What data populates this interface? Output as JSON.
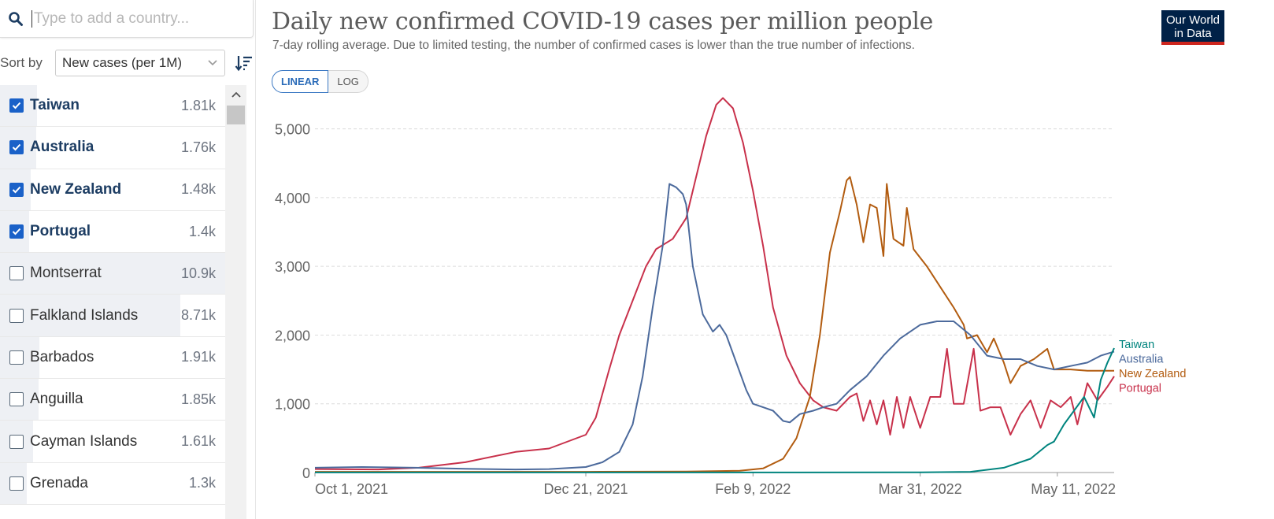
{
  "search": {
    "placeholder": "Type to add a country..."
  },
  "sort": {
    "label": "Sort by",
    "selected": "New cases (per 1M)"
  },
  "countries": [
    {
      "name": "Taiwan",
      "value": "1.81k",
      "checked": true,
      "share": 0.166
    },
    {
      "name": "Australia",
      "value": "1.76k",
      "checked": true,
      "share": 0.161
    },
    {
      "name": "New Zealand",
      "value": "1.48k",
      "checked": true,
      "share": 0.136
    },
    {
      "name": "Portugal",
      "value": "1.4k",
      "checked": true,
      "share": 0.129
    },
    {
      "name": "Montserrat",
      "value": "10.9k",
      "checked": false,
      "share": 1.0
    },
    {
      "name": "Falkland Islands",
      "value": "8.71k",
      "checked": false,
      "share": 0.8
    },
    {
      "name": "Barbados",
      "value": "1.91k",
      "checked": false,
      "share": 0.175
    },
    {
      "name": "Anguilla",
      "value": "1.85k",
      "checked": false,
      "share": 0.17
    },
    {
      "name": "Cayman Islands",
      "value": "1.61k",
      "checked": false,
      "share": 0.148
    },
    {
      "name": "Grenada",
      "value": "1.3k",
      "checked": false,
      "share": 0.119
    }
  ],
  "header": {
    "title": "Daily new confirmed COVID-19 cases per million people",
    "subtitle": "7-day rolling average. Due to limited testing, the number of confirmed cases is lower than the true number of infections.",
    "logo_line1": "Our World",
    "logo_line2": "in Data"
  },
  "scale_toggle": {
    "linear": "LINEAR",
    "log": "LOG",
    "active": "LINEAR"
  },
  "chart_data": {
    "type": "line",
    "x_domain": [
      "2021-10-01",
      "2022-05-28"
    ],
    "y_range": [
      0,
      5500
    ],
    "y_ticks": [
      0,
      1000,
      2000,
      3000,
      4000,
      5000
    ],
    "y_tick_labels": [
      "0",
      "1,000",
      "2,000",
      "3,000",
      "4,000",
      "5,000"
    ],
    "x_ticks": [
      "2021-10-01",
      "2021-12-21",
      "2022-02-09",
      "2022-03-31",
      "2022-05-11"
    ],
    "x_tick_labels": [
      "Oct 1, 2021",
      "Dec 21, 2021",
      "Feb 9, 2022",
      "Mar 31, 2022",
      "May 11, 2022"
    ],
    "grid": true,
    "legend": "right end labels",
    "series": [
      {
        "name": "Taiwan",
        "color": "#00847e",
        "points": [
          [
            "2021-10-01",
            1
          ],
          [
            "2021-12-21",
            1
          ],
          [
            "2022-02-09",
            1
          ],
          [
            "2022-03-31",
            2
          ],
          [
            "2022-04-15",
            10
          ],
          [
            "2022-04-25",
            70
          ],
          [
            "2022-05-03",
            200
          ],
          [
            "2022-05-08",
            400
          ],
          [
            "2022-05-10",
            450
          ],
          [
            "2022-05-13",
            700
          ],
          [
            "2022-05-16",
            900
          ],
          [
            "2022-05-19",
            1100
          ],
          [
            "2022-05-22",
            800
          ],
          [
            "2022-05-24",
            1350
          ],
          [
            "2022-05-26",
            1600
          ],
          [
            "2022-05-28",
            1810
          ]
        ]
      },
      {
        "name": "Australia",
        "color": "#4c6a9c",
        "points": [
          [
            "2021-10-01",
            70
          ],
          [
            "2021-10-15",
            80
          ],
          [
            "2021-10-31",
            70
          ],
          [
            "2021-11-15",
            55
          ],
          [
            "2021-11-30",
            45
          ],
          [
            "2021-12-10",
            50
          ],
          [
            "2021-12-21",
            80
          ],
          [
            "2021-12-26",
            150
          ],
          [
            "2021-12-31",
            300
          ],
          [
            "2022-01-04",
            700
          ],
          [
            "2022-01-07",
            1400
          ],
          [
            "2022-01-10",
            2400
          ],
          [
            "2022-01-13",
            3300
          ],
          [
            "2022-01-15",
            4200
          ],
          [
            "2022-01-17",
            4150
          ],
          [
            "2022-01-19",
            4050
          ],
          [
            "2022-01-20",
            3900
          ],
          [
            "2022-01-22",
            3000
          ],
          [
            "2022-01-25",
            2300
          ],
          [
            "2022-01-28",
            2050
          ],
          [
            "2022-01-30",
            2150
          ],
          [
            "2022-02-01",
            2000
          ],
          [
            "2022-02-04",
            1600
          ],
          [
            "2022-02-07",
            1200
          ],
          [
            "2022-02-09",
            1000
          ],
          [
            "2022-02-12",
            950
          ],
          [
            "2022-02-15",
            900
          ],
          [
            "2022-02-18",
            750
          ],
          [
            "2022-02-20",
            730
          ],
          [
            "2022-02-23",
            850
          ],
          [
            "2022-02-27",
            900
          ],
          [
            "2022-03-02",
            950
          ],
          [
            "2022-03-06",
            1000
          ],
          [
            "2022-03-10",
            1200
          ],
          [
            "2022-03-15",
            1400
          ],
          [
            "2022-03-20",
            1700
          ],
          [
            "2022-03-25",
            1950
          ],
          [
            "2022-03-31",
            2150
          ],
          [
            "2022-04-05",
            2200
          ],
          [
            "2022-04-10",
            2200
          ],
          [
            "2022-04-15",
            2000
          ],
          [
            "2022-04-20",
            1700
          ],
          [
            "2022-04-25",
            1650
          ],
          [
            "2022-04-30",
            1650
          ],
          [
            "2022-05-05",
            1550
          ],
          [
            "2022-05-10",
            1500
          ],
          [
            "2022-05-15",
            1550
          ],
          [
            "2022-05-20",
            1600
          ],
          [
            "2022-05-24",
            1700
          ],
          [
            "2022-05-28",
            1760
          ]
        ]
      },
      {
        "name": "New Zealand",
        "color": "#b25c10",
        "points": [
          [
            "2021-10-01",
            10
          ],
          [
            "2021-12-21",
            10
          ],
          [
            "2022-01-20",
            15
          ],
          [
            "2022-02-05",
            25
          ],
          [
            "2022-02-12",
            60
          ],
          [
            "2022-02-18",
            200
          ],
          [
            "2022-02-22",
            500
          ],
          [
            "2022-02-26",
            1100
          ],
          [
            "2022-03-01",
            2000
          ],
          [
            "2022-03-04",
            3200
          ],
          [
            "2022-03-07",
            3800
          ],
          [
            "2022-03-09",
            4250
          ],
          [
            "2022-03-10",
            4300
          ],
          [
            "2022-03-12",
            3900
          ],
          [
            "2022-03-14",
            3350
          ],
          [
            "2022-03-16",
            3900
          ],
          [
            "2022-03-18",
            3850
          ],
          [
            "2022-03-20",
            3150
          ],
          [
            "2022-03-21",
            4200
          ],
          [
            "2022-03-23",
            3400
          ],
          [
            "2022-03-26",
            3300
          ],
          [
            "2022-03-27",
            3850
          ],
          [
            "2022-03-29",
            3250
          ],
          [
            "2022-04-02",
            3000
          ],
          [
            "2022-04-06",
            2700
          ],
          [
            "2022-04-10",
            2400
          ],
          [
            "2022-04-13",
            2150
          ],
          [
            "2022-04-14",
            1950
          ],
          [
            "2022-04-17",
            2000
          ],
          [
            "2022-04-20",
            1750
          ],
          [
            "2022-04-22",
            1950
          ],
          [
            "2022-04-25",
            1600
          ],
          [
            "2022-04-27",
            1300
          ],
          [
            "2022-04-30",
            1550
          ],
          [
            "2022-05-04",
            1650
          ],
          [
            "2022-05-08",
            1800
          ],
          [
            "2022-05-10",
            1500
          ],
          [
            "2022-05-15",
            1500
          ],
          [
            "2022-05-20",
            1480
          ],
          [
            "2022-05-28",
            1480
          ]
        ]
      },
      {
        "name": "Portugal",
        "color": "#c8314b",
        "points": [
          [
            "2021-10-01",
            50
          ],
          [
            "2021-10-20",
            45
          ],
          [
            "2021-11-01",
            70
          ],
          [
            "2021-11-15",
            150
          ],
          [
            "2021-11-30",
            300
          ],
          [
            "2021-12-10",
            350
          ],
          [
            "2021-12-21",
            550
          ],
          [
            "2021-12-24",
            800
          ],
          [
            "2021-12-28",
            1500
          ],
          [
            "2021-12-31",
            2000
          ],
          [
            "2022-01-04",
            2500
          ],
          [
            "2022-01-08",
            3000
          ],
          [
            "2022-01-11",
            3250
          ],
          [
            "2022-01-16",
            3400
          ],
          [
            "2022-01-20",
            3700
          ],
          [
            "2022-01-23",
            4300
          ],
          [
            "2022-01-26",
            4900
          ],
          [
            "2022-01-29",
            5350
          ],
          [
            "2022-01-31",
            5450
          ],
          [
            "2022-02-03",
            5300
          ],
          [
            "2022-02-06",
            4800
          ],
          [
            "2022-02-09",
            4100
          ],
          [
            "2022-02-12",
            3300
          ],
          [
            "2022-02-15",
            2400
          ],
          [
            "2022-02-19",
            1700
          ],
          [
            "2022-02-23",
            1300
          ],
          [
            "2022-02-27",
            1050
          ],
          [
            "2022-03-02",
            950
          ],
          [
            "2022-03-06",
            900
          ],
          [
            "2022-03-10",
            1100
          ],
          [
            "2022-03-12",
            1150
          ],
          [
            "2022-03-14",
            750
          ],
          [
            "2022-03-16",
            1050
          ],
          [
            "2022-03-18",
            700
          ],
          [
            "2022-03-20",
            1050
          ],
          [
            "2022-03-22",
            550
          ],
          [
            "2022-03-24",
            1100
          ],
          [
            "2022-03-26",
            650
          ],
          [
            "2022-03-28",
            1100
          ],
          [
            "2022-03-31",
            650
          ],
          [
            "2022-04-03",
            1100
          ],
          [
            "2022-04-06",
            1100
          ],
          [
            "2022-04-08",
            1800
          ],
          [
            "2022-04-10",
            1000
          ],
          [
            "2022-04-13",
            1000
          ],
          [
            "2022-04-16",
            1800
          ],
          [
            "2022-04-18",
            900
          ],
          [
            "2022-04-21",
            950
          ],
          [
            "2022-04-24",
            950
          ],
          [
            "2022-04-27",
            550
          ],
          [
            "2022-04-30",
            850
          ],
          [
            "2022-05-03",
            1050
          ],
          [
            "2022-05-06",
            650
          ],
          [
            "2022-05-09",
            1050
          ],
          [
            "2022-05-12",
            950
          ],
          [
            "2022-05-15",
            1100
          ],
          [
            "2022-05-17",
            700
          ],
          [
            "2022-05-20",
            1300
          ],
          [
            "2022-05-23",
            1050
          ],
          [
            "2022-05-26",
            1250
          ],
          [
            "2022-05-28",
            1400
          ]
        ]
      }
    ]
  }
}
